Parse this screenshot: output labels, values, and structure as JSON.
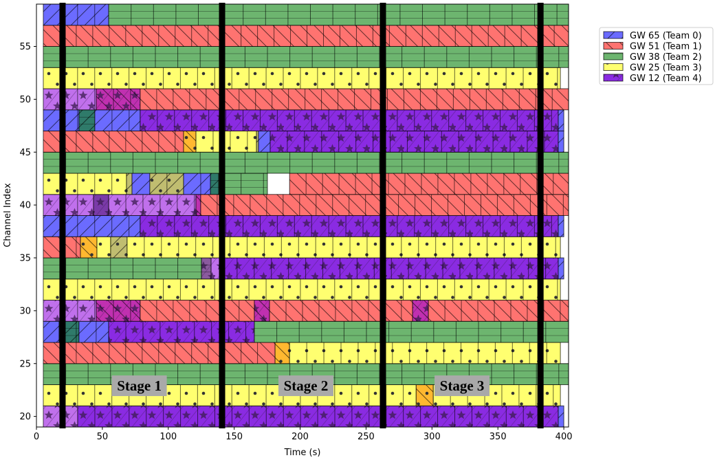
{
  "chart_data": {
    "type": "bar",
    "subtype": "horizontal-timeline (broken_barh)",
    "xlabel": "Time (s)",
    "ylabel": "Channel Index",
    "xlim": [
      0,
      403.6
    ],
    "ylim": [
      19,
      59
    ],
    "xticks": [
      0,
      50,
      100,
      150,
      200,
      250,
      300,
      350,
      400
    ],
    "yticks": [
      20,
      25,
      30,
      35,
      40,
      45,
      50,
      55
    ],
    "grid": false,
    "legend_position": "outside-top-right",
    "legend": [
      {
        "label": "GW 65 (Team 0)",
        "team": 0,
        "color": "#6b6bff",
        "hatch": "diagonal-forward"
      },
      {
        "label": "GW 51 (Team 1)",
        "team": 1,
        "color": "#ff7370",
        "hatch": "diagonal-back"
      },
      {
        "label": "GW 38 (Team 2)",
        "team": 2,
        "color": "#6db56f",
        "hatch": "horizontal"
      },
      {
        "label": "GW 25 (Team 3)",
        "team": 3,
        "color": "#ffff70",
        "hatch": "dots"
      },
      {
        "label": "GW 12 (Team 4)",
        "team": 4,
        "color": "#8a2be2",
        "hatch": "stars"
      }
    ],
    "overlap_colors": {
      "t4-light": "#c070ec",
      "t4+t1": "#c030b0",
      "t0+t2": "#2f7a6a",
      "t1+t3": "#ffb830",
      "t0+t3": "#c0bd70",
      "t4+t2": "#8a5a9e",
      "t4+t4": "#7a3aa8"
    },
    "rows": [
      {
        "channel": 20,
        "segments": [
          [
            5.2,
            31.3,
            "t4-light"
          ],
          [
            31.3,
            395.8,
            "t4"
          ],
          [
            395.8,
            400,
            "t0"
          ]
        ]
      },
      {
        "channel": 22,
        "segments": [
          [
            5.2,
            288,
            "t3"
          ],
          [
            288,
            301,
            "t1+t3"
          ],
          [
            301,
            397.4,
            "t3"
          ]
        ]
      },
      {
        "channel": 24,
        "segments": [
          [
            5.2,
            403.6,
            "t2"
          ]
        ]
      },
      {
        "channel": 26,
        "segments": [
          [
            5.2,
            181,
            "t1"
          ],
          [
            181,
            192,
            "t1+t3"
          ],
          [
            192,
            397.4,
            "t3"
          ]
        ]
      },
      {
        "channel": 28,
        "segments": [
          [
            5.2,
            17.2,
            "t0"
          ],
          [
            17.2,
            32.3,
            "t0+t2"
          ],
          [
            32.3,
            54.8,
            "t0"
          ],
          [
            54.8,
            165.3,
            "t4"
          ],
          [
            165.3,
            403.6,
            "t2"
          ]
        ]
      },
      {
        "channel": 30,
        "segments": [
          [
            5.2,
            45.4,
            "t4-light"
          ],
          [
            45.4,
            78.7,
            "t4+t1"
          ],
          [
            78.7,
            165.3,
            "t1"
          ],
          [
            165.3,
            176.8,
            "t4+t1"
          ],
          [
            176.8,
            285.3,
            "t1"
          ],
          [
            285.3,
            297.3,
            "t4+t1"
          ],
          [
            297.3,
            403.6,
            "t1"
          ]
        ]
      },
      {
        "channel": 32,
        "segments": [
          [
            5.2,
            397.4,
            "t3"
          ]
        ]
      },
      {
        "channel": 34,
        "segments": [
          [
            5.2,
            125.2,
            "t2"
          ],
          [
            125.2,
            132.5,
            "t4+t2"
          ],
          [
            132.5,
            139.2,
            "t4-light"
          ],
          [
            139.2,
            395.8,
            "t4"
          ],
          [
            395.8,
            400,
            "t0"
          ]
        ]
      },
      {
        "channel": 36,
        "segments": [
          [
            5.2,
            33.4,
            "t1"
          ],
          [
            33.4,
            45.9,
            "t1+t3"
          ],
          [
            45.9,
            56.3,
            "t3"
          ],
          [
            56.3,
            68.8,
            "t0+t3"
          ],
          [
            68.8,
            397.4,
            "t3"
          ]
        ]
      },
      {
        "channel": 38,
        "segments": [
          [
            5.2,
            78.7,
            "t0"
          ],
          [
            78.7,
            395.8,
            "t4"
          ],
          [
            395.8,
            400,
            "t0"
          ]
        ]
      },
      {
        "channel": 40,
        "segments": [
          [
            5.2,
            43.3,
            "t4-light"
          ],
          [
            43.3,
            54.8,
            "t4+t4"
          ],
          [
            54.8,
            121,
            "t4-light"
          ],
          [
            121,
            124.6,
            "t4+t1"
          ],
          [
            124.6,
            403.6,
            "t1"
          ]
        ]
      },
      {
        "channel": 42,
        "segments": [
          [
            5.2,
            68.3,
            "t3"
          ],
          [
            68.3,
            72.5,
            "t0+t3"
          ],
          [
            72.5,
            86,
            "t0"
          ],
          [
            86,
            111.6,
            "t0+t3"
          ],
          [
            111.6,
            132,
            "t0"
          ],
          [
            132,
            138.2,
            "t0+t2"
          ],
          [
            138.2,
            175.2,
            "t2"
          ],
          [
            192,
            403.6,
            "t1"
          ]
        ]
      },
      {
        "channel": 44,
        "segments": [
          [
            5.2,
            403.6,
            "t2"
          ]
        ]
      },
      {
        "channel": 46,
        "segments": [
          [
            5.2,
            111.6,
            "t1"
          ],
          [
            111.6,
            121,
            "t1+t3"
          ],
          [
            121,
            166.9,
            "t3"
          ],
          [
            166.9,
            168.4,
            "t0+t3"
          ],
          [
            168.4,
            177.3,
            "t0"
          ],
          [
            177.3,
            395.8,
            "t4"
          ],
          [
            395.8,
            400,
            "t0"
          ]
        ]
      },
      {
        "channel": 48,
        "segments": [
          [
            5.2,
            32.3,
            "t0"
          ],
          [
            32.3,
            44.3,
            "t0+t2"
          ],
          [
            44.3,
            78.7,
            "t0"
          ],
          [
            78.7,
            395.8,
            "t4"
          ],
          [
            395.8,
            400,
            "t0"
          ]
        ]
      },
      {
        "channel": 50,
        "segments": [
          [
            5.2,
            45.4,
            "t4-light"
          ],
          [
            45.4,
            78.7,
            "t4+t1"
          ],
          [
            78.7,
            403.6,
            "t1"
          ]
        ]
      },
      {
        "channel": 52,
        "segments": [
          [
            5.2,
            397.4,
            "t3"
          ]
        ]
      },
      {
        "channel": 54,
        "segments": [
          [
            5.2,
            403.6,
            "t2"
          ]
        ]
      },
      {
        "channel": 56,
        "segments": [
          [
            5.2,
            403.6,
            "t1"
          ]
        ]
      },
      {
        "channel": 58,
        "segments": [
          [
            5.2,
            54.8,
            "t0"
          ],
          [
            54.8,
            403.6,
            "t2"
          ]
        ]
      }
    ],
    "stage_boundaries": [
      19.8,
      140.8,
      262.8,
      382.3
    ],
    "annotations": [
      {
        "text": "Stage 1",
        "x": 78,
        "y": 22.9
      },
      {
        "text": "Stage 2",
        "x": 204.4,
        "y": 22.9
      },
      {
        "text": "Stage 3",
        "x": 322.8,
        "y": 22.9
      }
    ]
  }
}
